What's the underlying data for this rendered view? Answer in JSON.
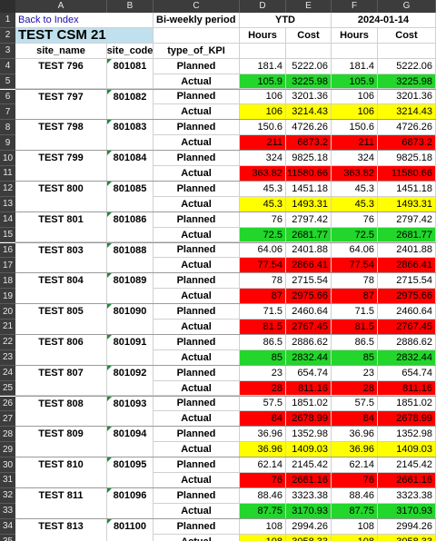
{
  "columns": [
    "A",
    "B",
    "C",
    "D",
    "E",
    "F",
    "G"
  ],
  "header": {
    "back_link": "Back to Index",
    "title": "TEST CSM 21",
    "period_label": "Bi-weekly period",
    "ytd_label": "YTD",
    "date_label": "2024-01-14",
    "hours_label": "Hours",
    "cost_label": "Cost",
    "col_site_name": "site_name",
    "col_site_code": "site_code",
    "col_type": "type_of_KPI"
  },
  "colors": {
    "green": "#22d62b",
    "yellow": "#ffff00",
    "red": "#ff0000",
    "title_bg": "#bfe0ec"
  },
  "sites": [
    {
      "name": "TEST 796",
      "code": "801081",
      "planned": {
        "hours": "181.4",
        "cost": "5222.06"
      },
      "actual": {
        "hours": "105.9",
        "cost": "3225.98",
        "status": "green"
      }
    },
    {
      "name": "TEST 797",
      "code": "801082",
      "planned": {
        "hours": "106",
        "cost": "3201.36"
      },
      "actual": {
        "hours": "106",
        "cost": "3214.43",
        "status": "yellow"
      }
    },
    {
      "name": "TEST 798",
      "code": "801083",
      "planned": {
        "hours": "150.6",
        "cost": "4726.26"
      },
      "actual": {
        "hours": "211",
        "cost": "6873.2",
        "status": "red"
      }
    },
    {
      "name": "TEST 799",
      "code": "801084",
      "planned": {
        "hours": "324",
        "cost": "9825.18"
      },
      "actual": {
        "hours": "363.82",
        "cost": "11580.66",
        "status": "red"
      }
    },
    {
      "name": "TEST 800",
      "code": "801085",
      "planned": {
        "hours": "45.3",
        "cost": "1451.18"
      },
      "actual": {
        "hours": "45.3",
        "cost": "1493.31",
        "status": "yellow"
      }
    },
    {
      "name": "TEST 801",
      "code": "801086",
      "planned": {
        "hours": "76",
        "cost": "2797.42"
      },
      "actual": {
        "hours": "72.5",
        "cost": "2681.77",
        "status": "green"
      }
    },
    {
      "name": "TEST 803",
      "code": "801088",
      "planned": {
        "hours": "64.06",
        "cost": "2401.88"
      },
      "actual": {
        "hours": "77.54",
        "cost": "2866.41",
        "status": "red"
      }
    },
    {
      "name": "TEST 804",
      "code": "801089",
      "planned": {
        "hours": "78",
        "cost": "2715.54"
      },
      "actual": {
        "hours": "87",
        "cost": "2975.66",
        "status": "red"
      }
    },
    {
      "name": "TEST 805",
      "code": "801090",
      "planned": {
        "hours": "71.5",
        "cost": "2460.64"
      },
      "actual": {
        "hours": "81.5",
        "cost": "2767.45",
        "status": "red"
      }
    },
    {
      "name": "TEST 806",
      "code": "801091",
      "planned": {
        "hours": "86.5",
        "cost": "2886.62"
      },
      "actual": {
        "hours": "85",
        "cost": "2832.44",
        "status": "green"
      }
    },
    {
      "name": "TEST 807",
      "code": "801092",
      "planned": {
        "hours": "23",
        "cost": "654.74"
      },
      "actual": {
        "hours": "28",
        "cost": "811.16",
        "status": "red"
      }
    },
    {
      "name": "TEST 808",
      "code": "801093",
      "planned": {
        "hours": "57.5",
        "cost": "1851.02"
      },
      "actual": {
        "hours": "84",
        "cost": "2678.99",
        "status": "red"
      }
    },
    {
      "name": "TEST 809",
      "code": "801094",
      "planned": {
        "hours": "36.96",
        "cost": "1352.98"
      },
      "actual": {
        "hours": "36.96",
        "cost": "1409.03",
        "status": "yellow"
      }
    },
    {
      "name": "TEST 810",
      "code": "801095",
      "planned": {
        "hours": "62.14",
        "cost": "2145.42"
      },
      "actual": {
        "hours": "76",
        "cost": "2661.16",
        "status": "red"
      }
    },
    {
      "name": "TEST 811",
      "code": "801096",
      "planned": {
        "hours": "88.46",
        "cost": "3323.38"
      },
      "actual": {
        "hours": "87.75",
        "cost": "3170.93",
        "status": "green"
      }
    },
    {
      "name": "TEST 813",
      "code": "801100",
      "planned": {
        "hours": "108",
        "cost": "2994.26"
      },
      "actual": {
        "hours": "108",
        "cost": "3058.33",
        "status": "yellow"
      }
    }
  ],
  "kpi_planned": "Planned",
  "kpi_actual": "Actual"
}
